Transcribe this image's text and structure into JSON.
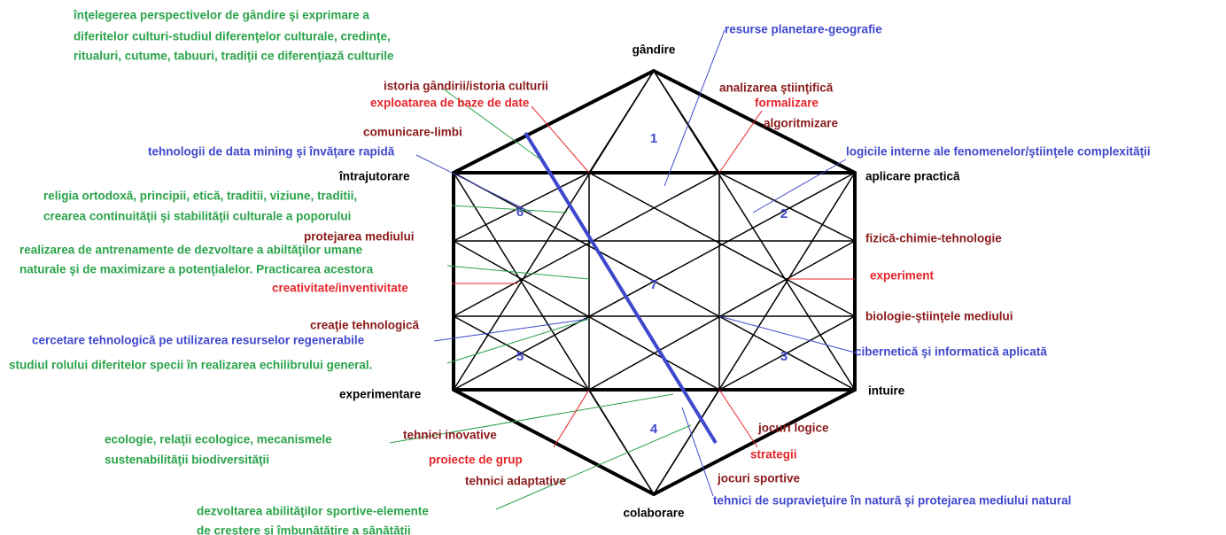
{
  "labels": [
    "înţelegerea perspectivelor de gândire şi exprimare a",
    "diferitelor culturi-studiul diferenţelor culturale, credinţe,",
    "ritualuri, cutume, tabuuri, tradiţii ce diferenţiază culturile",
    "resurse planetare-geografie",
    "gândire",
    "istoria gândirii/istoria culturii",
    "analizarea ştiinţifică",
    "exploatarea de baze de date",
    "formalizare",
    "algoritmizare",
    "comunicare-limbi",
    "tehnologii de data mining şi învăţare rapidă",
    "logicile interne ale fenomenelor/ştiinţele complexităţii",
    "întrajutorare",
    "aplicare practică",
    "religia ortodoxă, principii, etică, traditii, viziune, traditii,",
    "crearea continuităţii şi stabilităţii culturale a poporului",
    "protejarea mediului",
    "fizică-chimie-tehnologie",
    "realizarea de antrenamente de dezvoltare a abiltăţilor umane",
    "naturale şi de maximizare a potenţialelor. Practicarea acestora",
    "experiment",
    "creativitate/inventivitate",
    "creaţie tehnologică",
    "biologie-ştiinţele mediului",
    "cercetare tehnologică pe utilizarea resurselor regenerabile",
    "cibernetică şi informatică aplicată",
    "studiul rolului diferitelor specii în realizarea echilibrului general.",
    "experimentare",
    "intuire",
    "jocuri logice",
    "tehnici inovative",
    "ecologie, relaţii ecologice, mecanismele",
    "sustenabilităţii biodiversităţii",
    "proiecte de grup",
    "strategii",
    "tehnici adaptative",
    "jocuri sportive",
    "tehnici de supravieţuire în natură şi protejarea mediului natural",
    "dezvoltarea abilităţilor sportive-elemente",
    "de creştere şi îmbunătăţire a sănătăţii",
    "colaborare"
  ],
  "regions": [
    "1",
    "2",
    "3",
    "4",
    "5",
    "6",
    "7"
  ]
}
